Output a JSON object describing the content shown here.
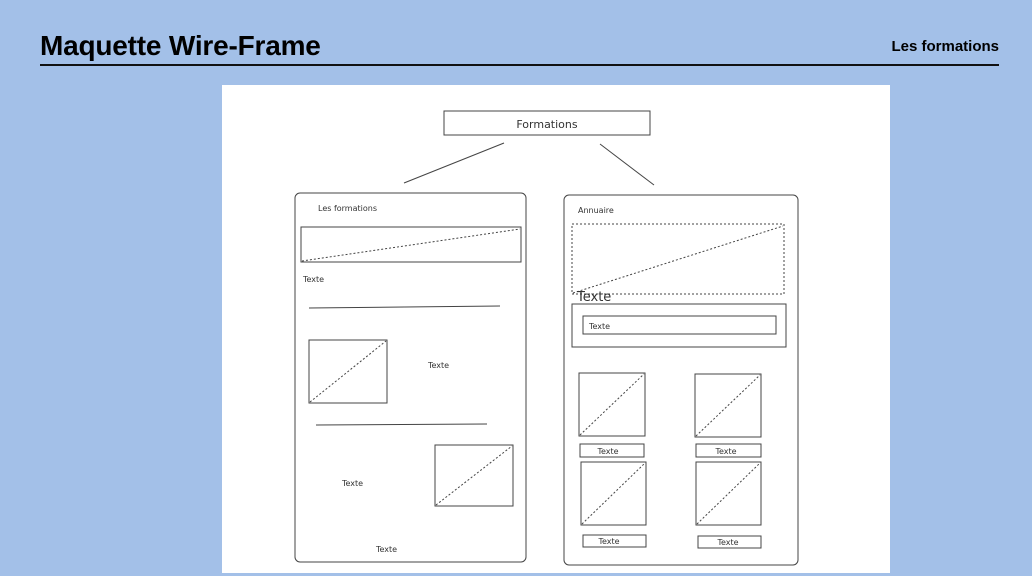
{
  "header": {
    "title": "Maquette Wire-Frame",
    "nav_link": "Les formations"
  },
  "wireframe": {
    "root_label": "Formations",
    "left_panel": {
      "title": "Les formations",
      "texts": [
        "Texte",
        "Texte",
        "Texte",
        "Texte"
      ]
    },
    "right_panel": {
      "title": "Annuaire",
      "big_text": "Texte",
      "input_text": "Texte",
      "card_captions": [
        "Texte",
        "Texte",
        "Texte",
        "Texte"
      ]
    }
  }
}
